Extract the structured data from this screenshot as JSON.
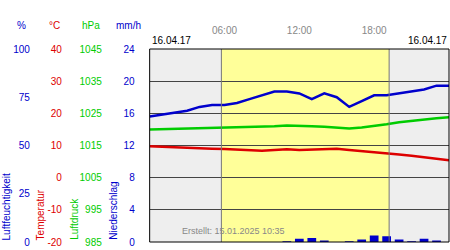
{
  "chart_data": {
    "type": "line",
    "header": {
      "left": "16.04.17",
      "right": "16.04.17"
    },
    "footer": "Erstellt: 15.01.2025 10:35",
    "x": [
      0,
      1,
      2,
      3,
      4,
      5,
      6,
      7,
      8,
      9,
      10,
      11,
      12,
      13,
      14,
      15,
      16,
      17,
      18,
      19,
      20,
      21,
      22,
      23,
      24
    ],
    "xlim": [
      0,
      24
    ],
    "xticks": [
      {
        "value": 6,
        "label": "06:00"
      },
      {
        "value": 12,
        "label": "12:00"
      },
      {
        "value": 18,
        "label": "18:00"
      }
    ],
    "daylight": [
      5.75,
      19.2
    ],
    "grid": true,
    "series": [
      {
        "name": "Luftfeuchtigkeit",
        "unit": "%",
        "type": "line",
        "color": "#0000cc",
        "ylim": [
          0,
          100
        ],
        "yticks": [
          0,
          25,
          50,
          75,
          100
        ],
        "values": [
          65,
          66,
          67,
          68,
          70,
          71,
          71,
          72,
          74,
          76,
          78,
          78,
          77,
          74,
          77,
          75,
          70,
          73,
          76,
          76,
          77,
          78,
          79,
          81,
          81
        ]
      },
      {
        "name": "Temperatur",
        "unit": "°C",
        "type": "line",
        "color": "#dd0000",
        "ylim": [
          -20,
          40
        ],
        "yticks": [
          -20,
          -10,
          0,
          10,
          20,
          30,
          40
        ],
        "values": [
          9.8,
          9.6,
          9.5,
          9.4,
          9.2,
          9.0,
          8.9,
          8.8,
          8.5,
          8.4,
          8.6,
          8.8,
          8.6,
          8.8,
          9.0,
          9.0,
          8.6,
          8.3,
          8.0,
          7.6,
          7.2,
          6.8,
          6.3,
          5.8,
          5.4
        ]
      },
      {
        "name": "Luftdruck",
        "unit": "hPa",
        "type": "line",
        "color": "#00cc00",
        "ylim": [
          985,
          1045
        ],
        "yticks": [
          985,
          995,
          1005,
          1015,
          1025,
          1035,
          1045
        ],
        "values": [
          1020.0,
          1020.1,
          1020.2,
          1020.2,
          1020.3,
          1020.4,
          1020.4,
          1020.5,
          1020.7,
          1020.9,
          1021.0,
          1021.2,
          1021.2,
          1021.0,
          1020.8,
          1020.5,
          1020.3,
          1020.6,
          1021.0,
          1021.6,
          1022.2,
          1022.7,
          1023.1,
          1023.5,
          1023.8
        ]
      },
      {
        "name": "Niederschlag",
        "unit": "mm/h",
        "type": "bar",
        "color": "#0000cc",
        "ylim": [
          0,
          24
        ],
        "yticks": [
          0,
          4,
          8,
          12,
          16,
          20,
          24
        ],
        "values": [
          0,
          0,
          0,
          0,
          0,
          0,
          0,
          0,
          0,
          0,
          0,
          0.1,
          0.4,
          0.5,
          0.2,
          0,
          0.1,
          0.3,
          0.8,
          0.7,
          0.3,
          0.1,
          0.4,
          0.2,
          0
        ]
      }
    ]
  }
}
